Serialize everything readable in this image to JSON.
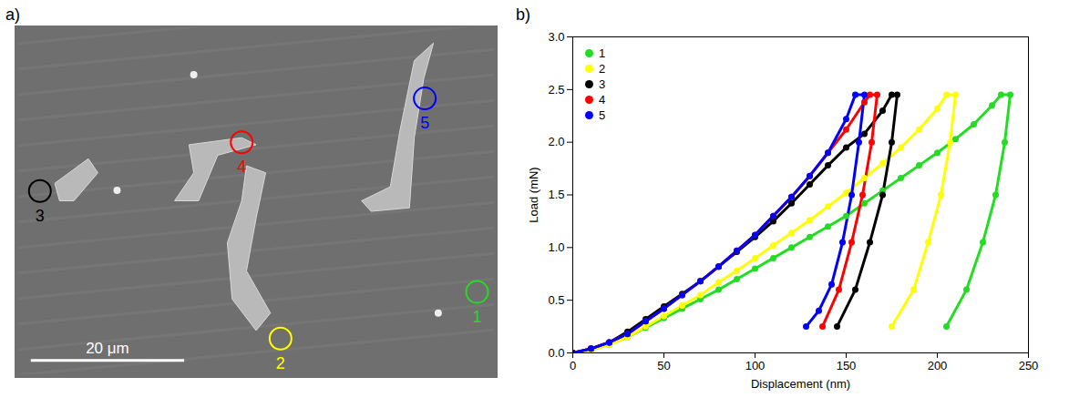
{
  "image_panel": {
    "panel_label": "a)",
    "scale_bar": "20 μm",
    "markers": [
      {
        "label": "1",
        "color": "#22dd22"
      },
      {
        "label": "2",
        "color": "#ffff00"
      },
      {
        "label": "3",
        "color": "#000000"
      },
      {
        "label": "4",
        "color": "#ff0000"
      },
      {
        "label": "5",
        "color": "#0000ff"
      }
    ]
  },
  "chart_data": {
    "type": "line",
    "panel_label": "b)",
    "x_label": "Displacement (nm)",
    "y_label": "Load (mN)",
    "xlim": [
      0,
      250
    ],
    "xticks": [
      0,
      50,
      100,
      150,
      200,
      250
    ],
    "ylim": [
      0,
      3.0
    ],
    "yticks": [
      {
        "value": 0,
        "label": "0.0"
      },
      {
        "value": 0.5,
        "label": "0.5"
      },
      {
        "value": 1,
        "label": "1.0"
      },
      {
        "value": 1.5,
        "label": "1.5"
      },
      {
        "value": 2,
        "label": "2.0"
      },
      {
        "value": 2.5,
        "label": "2.5"
      },
      {
        "value": 3,
        "label": "3.0"
      }
    ],
    "grid": false,
    "legend": "top-left",
    "marker": "circle",
    "series": [
      {
        "name": "1",
        "color": "#22dd22",
        "x": [
          0,
          10,
          20,
          30,
          40,
          50,
          60,
          70,
          80,
          90,
          100,
          110,
          120,
          130,
          140,
          150,
          160,
          170,
          180,
          190,
          200,
          210,
          220,
          230,
          235,
          240,
          237,
          232,
          225,
          216,
          205
        ],
        "values": [
          0,
          0.03,
          0.08,
          0.15,
          0.24,
          0.33,
          0.42,
          0.51,
          0.6,
          0.7,
          0.8,
          0.9,
          1.0,
          1.1,
          1.2,
          1.3,
          1.42,
          1.54,
          1.66,
          1.78,
          1.9,
          2.03,
          2.17,
          2.35,
          2.45,
          2.45,
          2.0,
          1.5,
          1.05,
          0.6,
          0.25
        ]
      },
      {
        "name": "2",
        "color": "#ffff00",
        "x": [
          0,
          10,
          20,
          30,
          40,
          50,
          60,
          70,
          80,
          90,
          100,
          110,
          120,
          130,
          140,
          150,
          160,
          170,
          180,
          190,
          200,
          205,
          210,
          207,
          202,
          195,
          187,
          175
        ],
        "values": [
          0,
          0.03,
          0.08,
          0.15,
          0.25,
          0.35,
          0.45,
          0.55,
          0.67,
          0.78,
          0.9,
          1.02,
          1.14,
          1.26,
          1.39,
          1.52,
          1.66,
          1.8,
          1.95,
          2.12,
          2.32,
          2.45,
          2.45,
          2.0,
          1.5,
          1.05,
          0.6,
          0.25
        ]
      },
      {
        "name": "3",
        "color": "#000000",
        "x": [
          0,
          10,
          20,
          30,
          40,
          50,
          60,
          70,
          80,
          90,
          100,
          110,
          120,
          130,
          140,
          150,
          160,
          170,
          175,
          178,
          175,
          170,
          163,
          155,
          145
        ],
        "values": [
          0,
          0.04,
          0.1,
          0.2,
          0.32,
          0.44,
          0.56,
          0.68,
          0.82,
          0.96,
          1.1,
          1.25,
          1.42,
          1.6,
          1.78,
          1.95,
          2.08,
          2.3,
          2.45,
          2.45,
          2.0,
          1.5,
          1.05,
          0.6,
          0.25
        ]
      },
      {
        "name": "4",
        "color": "#ff0000",
        "x": [
          0,
          10,
          20,
          30,
          40,
          50,
          60,
          70,
          80,
          90,
          100,
          110,
          120,
          130,
          140,
          150,
          160,
          163,
          167,
          164,
          159,
          153,
          146,
          137
        ],
        "values": [
          0,
          0.04,
          0.1,
          0.18,
          0.3,
          0.42,
          0.55,
          0.68,
          0.82,
          0.97,
          1.12,
          1.3,
          1.48,
          1.68,
          1.9,
          2.12,
          2.38,
          2.45,
          2.45,
          2.0,
          1.5,
          1.05,
          0.6,
          0.25
        ]
      },
      {
        "name": "5",
        "color": "#0000ff",
        "x": [
          0,
          10,
          20,
          30,
          40,
          50,
          60,
          70,
          80,
          90,
          100,
          110,
          120,
          130,
          140,
          150,
          155,
          160,
          157,
          153,
          148,
          142,
          135,
          128
        ],
        "values": [
          0,
          0.04,
          0.1,
          0.18,
          0.3,
          0.42,
          0.55,
          0.68,
          0.82,
          0.97,
          1.12,
          1.3,
          1.48,
          1.68,
          1.9,
          2.22,
          2.45,
          2.45,
          2.0,
          1.5,
          1.05,
          0.65,
          0.4,
          0.25
        ]
      }
    ]
  }
}
